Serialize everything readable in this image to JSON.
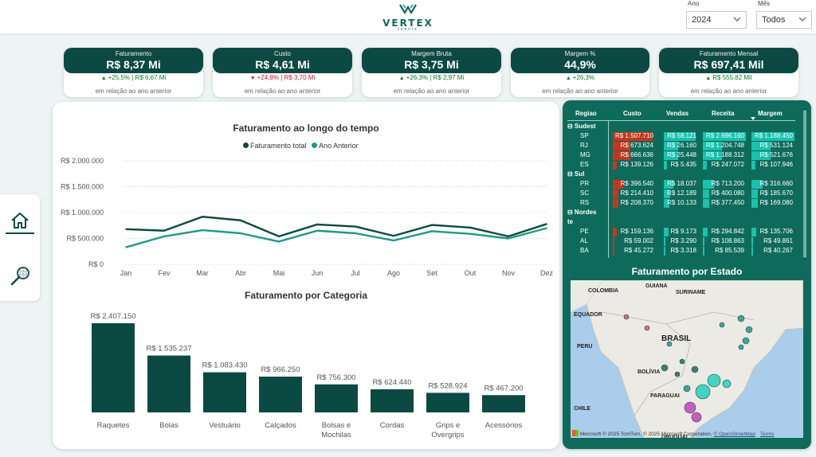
{
  "header": {
    "logo_name": "VERTEX",
    "logo_sub": "tennis",
    "year_label": "Ano",
    "year_value": "2024",
    "month_label": "Mês",
    "month_value": "Todos"
  },
  "kpis": [
    {
      "title": "Faturamento",
      "value": "R$ 8,37 Mi",
      "delta": "+25,5%",
      "prev": "R$ 6,67 Mi",
      "direction": "up",
      "note": "em relação ao ano anterior"
    },
    {
      "title": "Custo",
      "value": "R$ 4,61 Mi",
      "delta": "+24,8%",
      "prev": "R$ 3,70 Mi",
      "direction": "down",
      "note": "em relação ao ano anterior"
    },
    {
      "title": "Margem Bruta",
      "value": "R$ 3,75 Mi",
      "delta": "+26,3%",
      "prev": "R$ 2,97 Mi",
      "direction": "up",
      "note": "em relação ao ano anterior"
    },
    {
      "title": "Margem %",
      "value": "44,9%",
      "delta": "+26,3%",
      "prev": "",
      "direction": "up",
      "note": "em relação ao ano anterior"
    },
    {
      "title": "Faturamento Mensal",
      "value": "R$ 697,41 Mil",
      "delta": "R$ 555,82 Mil",
      "prev": "",
      "direction": "up",
      "note": "em relação ao ano anterior"
    }
  ],
  "chart_data": [
    {
      "type": "line",
      "title": "Faturamento ao longo do tempo",
      "x": [
        "Jan",
        "Fev",
        "Mar",
        "Abr",
        "Mai",
        "Jun",
        "Jul",
        "Ago",
        "Set",
        "Out",
        "Nov",
        "Dez"
      ],
      "y_ticks": [
        "R$ 0",
        "R$ 500.000",
        "R$ 1.000.000",
        "R$ 1.500.000",
        "R$ 2.000.000"
      ],
      "ylim": [
        0,
        2000000
      ],
      "grid": true,
      "legend_position": "top",
      "series": [
        {
          "name": "Faturamento total",
          "color": "#0b4a43",
          "values": [
            680000,
            650000,
            920000,
            850000,
            540000,
            770000,
            730000,
            550000,
            760000,
            710000,
            540000,
            780000
          ]
        },
        {
          "name": "Ano Anterior",
          "color": "#1a9a86",
          "values": [
            330000,
            540000,
            660000,
            600000,
            440000,
            650000,
            600000,
            460000,
            640000,
            590000,
            500000,
            700000
          ]
        }
      ]
    },
    {
      "type": "bar",
      "title": "Faturamento por Categoria",
      "categories": [
        "Raquetes",
        "Bolas",
        "Vestuário",
        "Calçados",
        "Bolsas e Mochilas",
        "Cordas",
        "Grips e Overgrips",
        "Acessórios"
      ],
      "category_lines": [
        [
          "Raquetes"
        ],
        [
          "Bolas"
        ],
        [
          "Vestuário"
        ],
        [
          "Calçados"
        ],
        [
          "Bolsas e",
          "Mochilas"
        ],
        [
          "Cordas"
        ],
        [
          "Grips e",
          "Overgrips"
        ],
        [
          "Acessórios"
        ]
      ],
      "values": [
        2407150,
        1535237,
        1083430,
        966250,
        756300,
        624440,
        528924,
        467200
      ],
      "labels": [
        "R$ 2.407.150",
        "R$ 1.535.237",
        "R$ 1.083.430",
        "R$ 966.250",
        "R$ 756.300",
        "R$ 624.440",
        "R$ 528.924",
        "R$ 467.200"
      ],
      "color": "#0b4a43"
    }
  ],
  "table": {
    "columns": [
      "Regiao",
      "Custo",
      "Vendas",
      "Receita",
      "Margem"
    ],
    "rows": [
      {
        "label": "⊟ Sudest",
        "group": true
      },
      {
        "label": "SP",
        "c": "R$ 1.507.710",
        "v": "R$ 58.121",
        "r": "R$ 2.696.160",
        "m": "R$ 1.188.450"
      },
      {
        "label": "RJ",
        "c": "R$ 673.624",
        "v": "R$ 26.160",
        "r": "R$ 1.204.748",
        "m": "R$ 531.124"
      },
      {
        "label": "MG",
        "c": "R$ 666.636",
        "v": "R$ 25.448",
        "r": "R$ 1.188.312",
        "m": "R$ 521.676"
      },
      {
        "label": "ES",
        "c": "R$ 139.126",
        "v": "R$ 5.435",
        "r": "R$ 247.072",
        "m": "R$ 107.946"
      },
      {
        "label": "⊟ Sul",
        "group": true
      },
      {
        "label": "PR",
        "c": "R$ 396.540",
        "v": "R$ 18.037",
        "r": "R$ 713.200",
        "m": "R$ 316.660"
      },
      {
        "label": "SC",
        "c": "R$ 214.410",
        "v": "R$ 12.189",
        "r": "R$ 400.080",
        "m": "R$ 185.670"
      },
      {
        "label": "RS",
        "c": "R$ 208.370",
        "v": "R$ 10.133",
        "r": "R$ 377.450",
        "m": "R$ 169.080"
      },
      {
        "label": "⊟ Nordes",
        "group": true
      },
      {
        "label": "te",
        "group": true
      },
      {
        "label": "PE",
        "c": "R$ 159.136",
        "v": "R$ 9.173",
        "r": "R$ 294.842",
        "m": "R$ 135.706"
      },
      {
        "label": "AL",
        "c": "R$ 59.002",
        "v": "R$ 3.290",
        "r": "R$ 108.863",
        "m": "R$ 49.861"
      },
      {
        "label": "BA",
        "c": "R$ 45.272",
        "v": "R$ 3.318",
        "r": "R$ 85.539",
        "m": "R$ 40.267"
      }
    ]
  },
  "map": {
    "title": "Faturamento por Estado",
    "labels": [
      "GUIANA",
      "SURINAME",
      "COLOMBIA",
      "EQUADOR",
      "BRASIL",
      "PERU",
      "BOLÍVIA",
      "PARAGUAI",
      "CHILE",
      "URUGUAI"
    ],
    "footer_prefix": "© 2025 TomTom, © 2025 Microsoft Corporation, ",
    "footer_osm": "© OpenStreetMap",
    "footer_terms": "Terms",
    "ms_label": "Microsoft"
  }
}
